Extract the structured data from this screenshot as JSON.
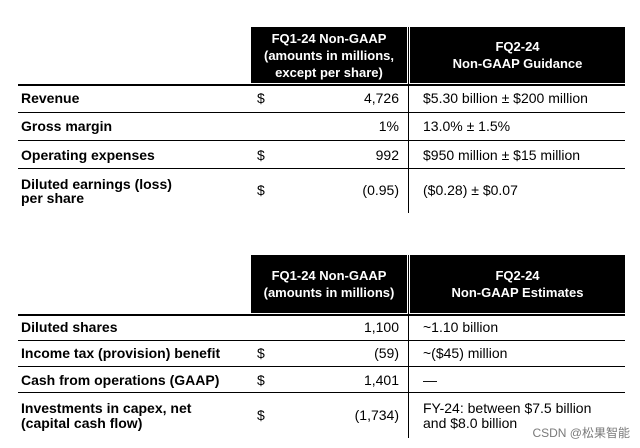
{
  "table1": {
    "header_col1": [
      "FQ1-24 Non-GAAP",
      "(amounts in millions,",
      "except per share)"
    ],
    "header_col2": [
      "FQ2-24",
      "Non-GAAP Guidance"
    ],
    "rows": [
      {
        "label": [
          "Revenue"
        ],
        "currency": "$",
        "value": "4,726",
        "guidance": [
          "$5.30 billion ± $200 million"
        ]
      },
      {
        "label": [
          "Gross margin"
        ],
        "currency": "",
        "value": "1%",
        "guidance": [
          "13.0% ± 1.5%"
        ]
      },
      {
        "label": [
          "Operating expenses"
        ],
        "currency": "$",
        "value": "992",
        "guidance": [
          "$950 million ± $15 million"
        ]
      },
      {
        "label": [
          "Diluted earnings (loss)",
          "per share"
        ],
        "currency": "$",
        "value": "(0.95)",
        "guidance": [
          "($0.28) ± $0.07"
        ]
      }
    ]
  },
  "table2": {
    "header_col1": [
      "FQ1-24 Non-GAAP",
      "(amounts in millions)"
    ],
    "header_col2": [
      "FQ2-24",
      "Non-GAAP Estimates"
    ],
    "rows": [
      {
        "label": [
          "Diluted shares"
        ],
        "currency": "",
        "value": "1,100",
        "guidance": [
          "~1.10 billion"
        ]
      },
      {
        "label": [
          "Income tax (provision) benefit"
        ],
        "currency": "$",
        "value": "(59)",
        "guidance": [
          "~($45) million"
        ]
      },
      {
        "label": [
          "Cash from operations (GAAP)"
        ],
        "currency": "$",
        "value": "1,401",
        "guidance": [
          "—"
        ]
      },
      {
        "label": [
          "Investments in capex, net",
          "(capital cash flow)"
        ],
        "currency": "$",
        "value": "(1,734)",
        "guidance": [
          "FY-24: between $7.5 billion",
          "and $8.0 billion"
        ]
      }
    ]
  },
  "watermark": "CSDN @松果智能"
}
